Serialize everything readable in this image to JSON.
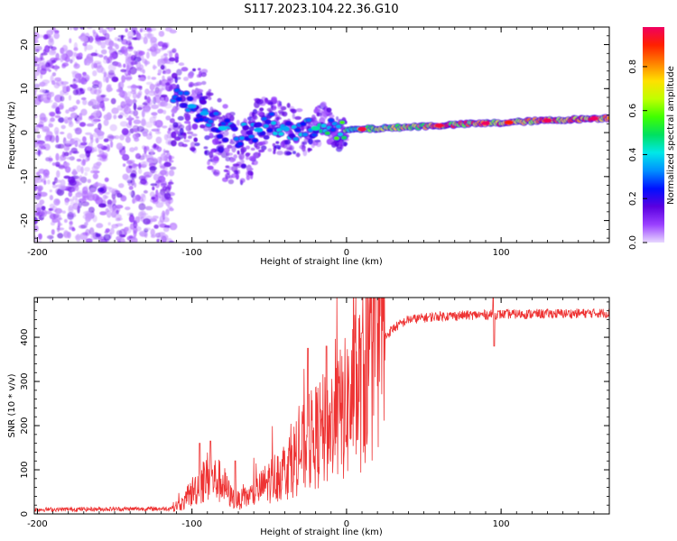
{
  "title": "S117.2023.104.22.36.G10",
  "chart_data": [
    {
      "type": "heatmap",
      "title": "",
      "xlabel": "Height of straight line (km)",
      "ylabel": "Frequency (Hz)",
      "xlim": [
        -202,
        170
      ],
      "ylim": [
        -25,
        24
      ],
      "xticks": [
        -200,
        -100,
        0,
        100
      ],
      "yticks": [
        -20,
        -10,
        0,
        10,
        20
      ],
      "colorbar": {
        "label": "Normalized spectral amplitude",
        "range": [
          0.0,
          0.98
        ],
        "ticks": [
          0.0,
          0.2,
          0.4,
          0.6,
          0.8
        ],
        "colormap": [
          "#e8d8ff",
          "#9a40ff",
          "#5a00e0",
          "#0010ff",
          "#0090ff",
          "#00e8e8",
          "#00e060",
          "#40ff00",
          "#c0ff00",
          "#ffe000",
          "#ff8000",
          "#ff2000",
          "#f00060"
        ]
      },
      "noise_region_x": [
        -202,
        -112
      ],
      "ridge": [
        {
          "x": -110,
          "y": 8
        },
        {
          "x": -100,
          "y": 6
        },
        {
          "x": -90,
          "y": 4
        },
        {
          "x": -80,
          "y": 1
        },
        {
          "x": -70,
          "y": -1
        },
        {
          "x": -60,
          "y": 0
        },
        {
          "x": -50,
          "y": 2
        },
        {
          "x": -40,
          "y": 1
        },
        {
          "x": -30,
          "y": 0
        },
        {
          "x": -20,
          "y": 1
        },
        {
          "x": -15,
          "y": 3
        },
        {
          "x": -10,
          "y": 1
        },
        {
          "x": -5,
          "y": -0.5
        },
        {
          "x": 0,
          "y": 0.5
        },
        {
          "x": 10,
          "y": 0.8
        },
        {
          "x": 20,
          "y": 0.9
        },
        {
          "x": 40,
          "y": 1.3
        },
        {
          "x": 60,
          "y": 1.6
        },
        {
          "x": 80,
          "y": 2
        },
        {
          "x": 100,
          "y": 2.2
        },
        {
          "x": 120,
          "y": 2.6
        },
        {
          "x": 140,
          "y": 2.9
        },
        {
          "x": 160,
          "y": 3.2
        },
        {
          "x": 170,
          "y": 3.3
        }
      ],
      "ridge_amplitude": [
        {
          "x": -110,
          "a": 0.3
        },
        {
          "x": -60,
          "a": 0.35
        },
        {
          "x": -20,
          "a": 0.4
        },
        {
          "x": 0,
          "a": 0.6
        },
        {
          "x": 20,
          "a": 0.7
        },
        {
          "x": 60,
          "a": 0.95
        },
        {
          "x": 100,
          "a": 0.95
        },
        {
          "x": 170,
          "a": 0.98
        }
      ]
    },
    {
      "type": "line",
      "title": "",
      "xlabel": "Height of straight line (km)",
      "ylabel": "SNR (10 * v/v)",
      "xlim": [
        -202,
        170
      ],
      "ylim": [
        0,
        490
      ],
      "xticks": [
        -200,
        -100,
        0,
        100
      ],
      "yticks": [
        0,
        100,
        200,
        300,
        400
      ],
      "series": [
        {
          "name": "SNR",
          "color": "#ee3333",
          "baseline": [
            {
              "x": -202,
              "y": 10
            },
            {
              "x": -115,
              "y": 12
            },
            {
              "x": -105,
              "y": 25
            },
            {
              "x": -100,
              "y": 50
            },
            {
              "x": -90,
              "y": 85
            },
            {
              "x": -80,
              "y": 70
            },
            {
              "x": -75,
              "y": 40
            },
            {
              "x": -70,
              "y": 30
            },
            {
              "x": -60,
              "y": 45
            },
            {
              "x": -50,
              "y": 75
            },
            {
              "x": -40,
              "y": 100
            },
            {
              "x": -30,
              "y": 140
            },
            {
              "x": -20,
              "y": 175
            },
            {
              "x": -10,
              "y": 200
            },
            {
              "x": 0,
              "y": 240
            },
            {
              "x": 10,
              "y": 300
            },
            {
              "x": 20,
              "y": 380
            },
            {
              "x": 30,
              "y": 420
            },
            {
              "x": 40,
              "y": 440
            },
            {
              "x": 60,
              "y": 448
            },
            {
              "x": 100,
              "y": 452
            },
            {
              "x": 170,
              "y": 455
            }
          ],
          "spikes": [
            {
              "x": -95,
              "y": 160
            },
            {
              "x": -88,
              "y": 165
            },
            {
              "x": -72,
              "y": 120
            },
            {
              "x": -25,
              "y": 375
            },
            {
              "x": -13,
              "y": 380
            },
            {
              "x": 10,
              "y": 410
            },
            {
              "x": 95,
              "y": 490
            },
            {
              "x": 95.5,
              "y": 380
            }
          ]
        }
      ]
    }
  ]
}
